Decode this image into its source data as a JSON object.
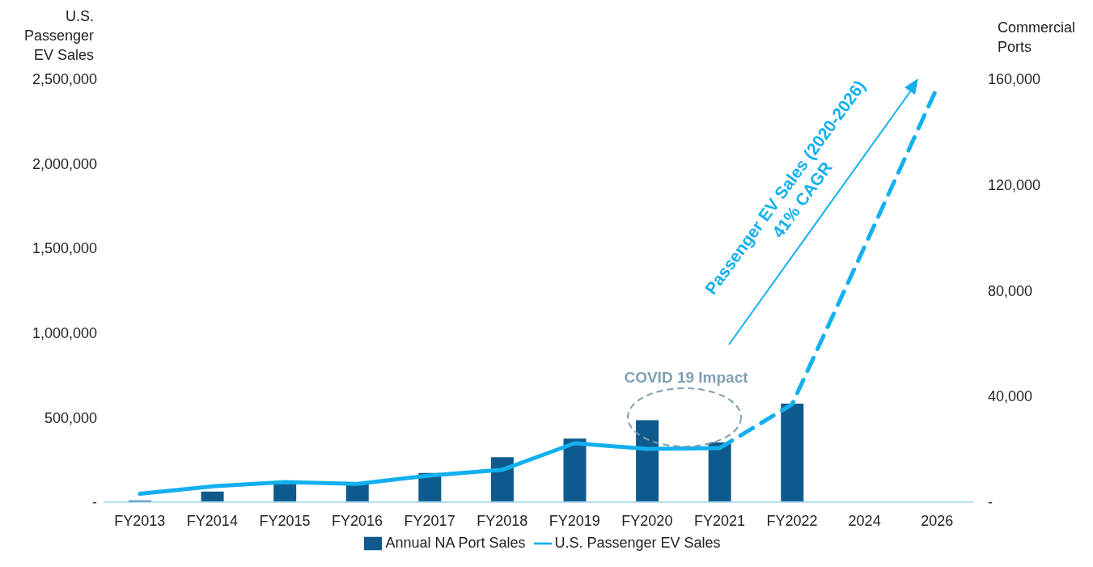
{
  "chart_data": {
    "type": "bar",
    "ylabel": "U.S. Passenger EV Sales",
    "y2label": "Commercial Ports",
    "categories": [
      "FY2013",
      "FY2014",
      "FY2015",
      "FY2016",
      "FY2017",
      "FY2018",
      "FY2019",
      "FY2020",
      "FY2021",
      "FY2022",
      "2024",
      "2026"
    ],
    "series": [
      {
        "name": "Annual NA Port Sales",
        "axis": "y2",
        "color": "#0f5a8c",
        "values": [
          600,
          4000,
          6900,
          6900,
          11000,
          17000,
          24000,
          31000,
          22600,
          37300,
          null,
          null
        ]
      },
      {
        "name": "U.S. Passenger EV Sales",
        "type": "line",
        "color": "#12b0ee",
        "line_style": "solid",
        "values": [
          49000,
          93000,
          118000,
          108000,
          157000,
          191000,
          348000,
          314000,
          319000,
          null,
          null,
          null
        ]
      },
      {
        "type": "line",
        "color": "#12b0ee",
        "line_style": "dashed",
        "values": [
          null,
          null,
          null,
          null,
          null,
          null,
          null,
          null,
          319000,
          578000,
          1510000,
          2450000
        ]
      }
    ],
    "ylim": [
      0,
      2500000
    ],
    "yticks": [
      {
        "value": 0,
        "label": "-"
      },
      {
        "value": 500000,
        "label": "500,000"
      },
      {
        "value": 1000000,
        "label": "1,000,000"
      },
      {
        "value": 1500000,
        "label": "1,500,000"
      },
      {
        "value": 2000000,
        "label": "2,000,000"
      },
      {
        "value": 2500000,
        "label": "2,500,000"
      }
    ],
    "y2lim": [
      0,
      160000
    ],
    "y2ticks": [
      {
        "value": 0,
        "label": "-"
      },
      {
        "value": 40000,
        "label": "40,000"
      },
      {
        "value": 80000,
        "label": "80,000"
      },
      {
        "value": 120000,
        "label": "120,000"
      },
      {
        "value": 160000,
        "label": "160,000"
      }
    ],
    "grid": false,
    "legend": "bottom",
    "annotations": [
      "COVID 19 Impact",
      "Passenger EV Sales (2020-2026)",
      "41% CAGR"
    ]
  }
}
